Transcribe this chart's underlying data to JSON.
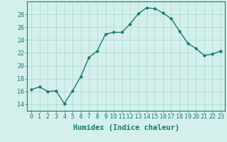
{
  "x": [
    0,
    1,
    2,
    3,
    4,
    5,
    6,
    7,
    8,
    9,
    10,
    11,
    12,
    13,
    14,
    15,
    16,
    17,
    18,
    19,
    20,
    21,
    22,
    23
  ],
  "y": [
    16.3,
    16.7,
    16.0,
    16.1,
    14.1,
    16.1,
    18.3,
    21.3,
    22.3,
    24.9,
    25.2,
    25.2,
    26.5,
    28.1,
    29.0,
    28.9,
    28.2,
    27.3,
    25.4,
    23.5,
    22.7,
    21.6,
    21.8,
    22.3
  ],
  "line_color": "#1a7a6e",
  "marker_color": "#1a7a6e",
  "bg_color": "#d4f0ec",
  "grid_color": "#a8d8d0",
  "xlabel": "Humidex (Indice chaleur)",
  "ylim": [
    13,
    30
  ],
  "xlim": [
    -0.5,
    23.5
  ],
  "yticks": [
    14,
    16,
    18,
    20,
    22,
    24,
    26,
    28
  ],
  "xticks": [
    0,
    1,
    2,
    3,
    4,
    5,
    6,
    7,
    8,
    9,
    10,
    11,
    12,
    13,
    14,
    15,
    16,
    17,
    18,
    19,
    20,
    21,
    22,
    23
  ],
  "xtick_labels": [
    "0",
    "1",
    "2",
    "3",
    "4",
    "5",
    "6",
    "7",
    "8",
    "9",
    "10",
    "11",
    "12",
    "13",
    "14",
    "15",
    "16",
    "17",
    "18",
    "19",
    "20",
    "21",
    "22",
    "23"
  ],
  "tick_color": "#1a7a6e",
  "tick_fontsize": 6,
  "xlabel_fontsize": 7.5
}
